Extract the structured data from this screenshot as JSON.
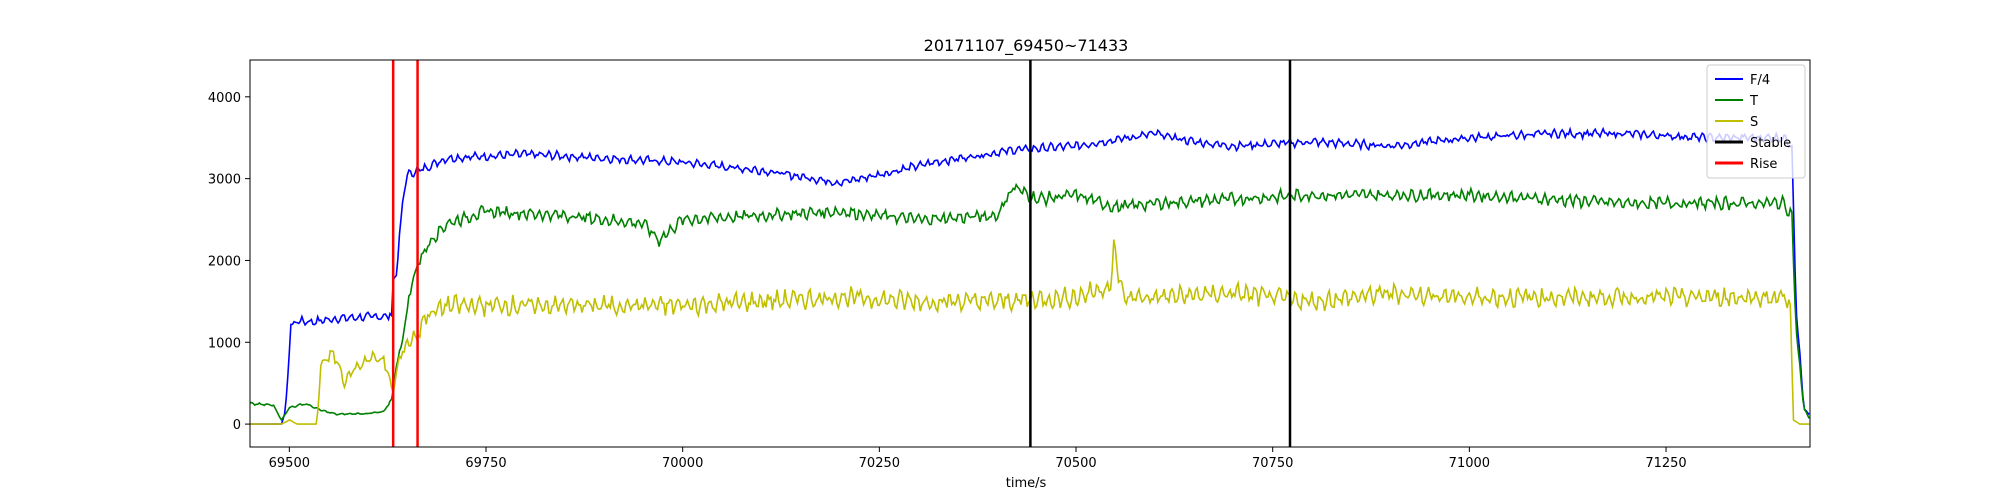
{
  "chart_data": {
    "type": "line",
    "title": "20171107_69450~71433",
    "xlabel": "time/s",
    "ylabel": "",
    "xlim": [
      69450,
      71433
    ],
    "ylim": [
      -280,
      4450
    ],
    "xticks": [
      69500,
      69750,
      70000,
      70250,
      70500,
      70750,
      71000,
      71250
    ],
    "yticks": [
      0,
      1000,
      2000,
      3000,
      4000
    ],
    "grid": false,
    "legend_position": "top-right",
    "series": [
      {
        "name": "F/4",
        "color": "#0000ff",
        "noise": 60,
        "points": [
          [
            69450,
            0
          ],
          [
            69490,
            0
          ],
          [
            69495,
            150
          ],
          [
            69502,
            1200
          ],
          [
            69510,
            1260
          ],
          [
            69530,
            1250
          ],
          [
            69560,
            1290
          ],
          [
            69600,
            1310
          ],
          [
            69625,
            1320
          ],
          [
            69630,
            1330
          ],
          [
            69632,
            1750
          ],
          [
            69636,
            1850
          ],
          [
            69645,
            2800
          ],
          [
            69650,
            3050
          ],
          [
            69665,
            3100
          ],
          [
            69700,
            3250
          ],
          [
            69800,
            3300
          ],
          [
            69900,
            3250
          ],
          [
            70000,
            3200
          ],
          [
            70100,
            3100
          ],
          [
            70200,
            2950
          ],
          [
            70250,
            3050
          ],
          [
            70320,
            3200
          ],
          [
            70420,
            3350
          ],
          [
            70500,
            3400
          ],
          [
            70600,
            3550
          ],
          [
            70650,
            3450
          ],
          [
            70700,
            3400
          ],
          [
            70800,
            3450
          ],
          [
            70900,
            3400
          ],
          [
            71000,
            3500
          ],
          [
            71100,
            3550
          ],
          [
            71200,
            3550
          ],
          [
            71300,
            3500
          ],
          [
            71400,
            3500
          ],
          [
            71410,
            3400
          ],
          [
            71415,
            1500
          ],
          [
            71425,
            200
          ],
          [
            71433,
            100
          ]
        ]
      },
      {
        "name": "T",
        "color": "#008000",
        "noise": 90,
        "points": [
          [
            69450,
            250
          ],
          [
            69480,
            230
          ],
          [
            69490,
            50
          ],
          [
            69500,
            200
          ],
          [
            69520,
            250
          ],
          [
            69540,
            170
          ],
          [
            69560,
            120
          ],
          [
            69600,
            130
          ],
          [
            69620,
            150
          ],
          [
            69630,
            300
          ],
          [
            69636,
            700
          ],
          [
            69645,
            1100
          ],
          [
            69655,
            1700
          ],
          [
            69665,
            2000
          ],
          [
            69680,
            2250
          ],
          [
            69700,
            2450
          ],
          [
            69750,
            2600
          ],
          [
            69850,
            2550
          ],
          [
            69950,
            2450
          ],
          [
            69970,
            2250
          ],
          [
            70000,
            2500
          ],
          [
            70100,
            2550
          ],
          [
            70200,
            2600
          ],
          [
            70300,
            2500
          ],
          [
            70400,
            2550
          ],
          [
            70420,
            2900
          ],
          [
            70450,
            2750
          ],
          [
            70500,
            2800
          ],
          [
            70550,
            2650
          ],
          [
            70600,
            2700
          ],
          [
            70700,
            2750
          ],
          [
            70800,
            2800
          ],
          [
            70900,
            2800
          ],
          [
            71000,
            2800
          ],
          [
            71100,
            2750
          ],
          [
            71200,
            2700
          ],
          [
            71300,
            2700
          ],
          [
            71400,
            2700
          ],
          [
            71410,
            2550
          ],
          [
            71415,
            1200
          ],
          [
            71425,
            200
          ],
          [
            71433,
            50
          ]
        ]
      },
      {
        "name": "S",
        "color": "#bfbf00",
        "noise": 140,
        "points": [
          [
            69450,
            0
          ],
          [
            69490,
            0
          ],
          [
            69500,
            50
          ],
          [
            69510,
            0
          ],
          [
            69535,
            0
          ],
          [
            69540,
            700
          ],
          [
            69550,
            850
          ],
          [
            69560,
            800
          ],
          [
            69570,
            500
          ],
          [
            69580,
            650
          ],
          [
            69600,
            800
          ],
          [
            69620,
            800
          ],
          [
            69625,
            600
          ],
          [
            69632,
            400
          ],
          [
            69640,
            800
          ],
          [
            69650,
            1000
          ],
          [
            69665,
            1100
          ],
          [
            69670,
            1300
          ],
          [
            69700,
            1450
          ],
          [
            69800,
            1450
          ],
          [
            69900,
            1450
          ],
          [
            70000,
            1450
          ],
          [
            70100,
            1500
          ],
          [
            70200,
            1550
          ],
          [
            70300,
            1500
          ],
          [
            70400,
            1500
          ],
          [
            70500,
            1550
          ],
          [
            70545,
            1700
          ],
          [
            70548,
            2150
          ],
          [
            70560,
            1550
          ],
          [
            70600,
            1550
          ],
          [
            70700,
            1600
          ],
          [
            70800,
            1500
          ],
          [
            70900,
            1600
          ],
          [
            71000,
            1550
          ],
          [
            71100,
            1550
          ],
          [
            71200,
            1550
          ],
          [
            71300,
            1550
          ],
          [
            71400,
            1550
          ],
          [
            71408,
            1450
          ],
          [
            71412,
            50
          ],
          [
            71420,
            0
          ],
          [
            71433,
            0
          ]
        ]
      }
    ],
    "stable_lines": [
      70442,
      70772
    ],
    "rise_lines": [
      69632,
      69663
    ],
    "legend": [
      {
        "label": "F/4",
        "color": "#0000ff",
        "width": 2
      },
      {
        "label": "T",
        "color": "#008000",
        "width": 2
      },
      {
        "label": "S",
        "color": "#bfbf00",
        "width": 2
      },
      {
        "label": "Stable",
        "color": "#000000",
        "width": 3
      },
      {
        "label": "Rise",
        "color": "#ff0000",
        "width": 3
      }
    ]
  }
}
